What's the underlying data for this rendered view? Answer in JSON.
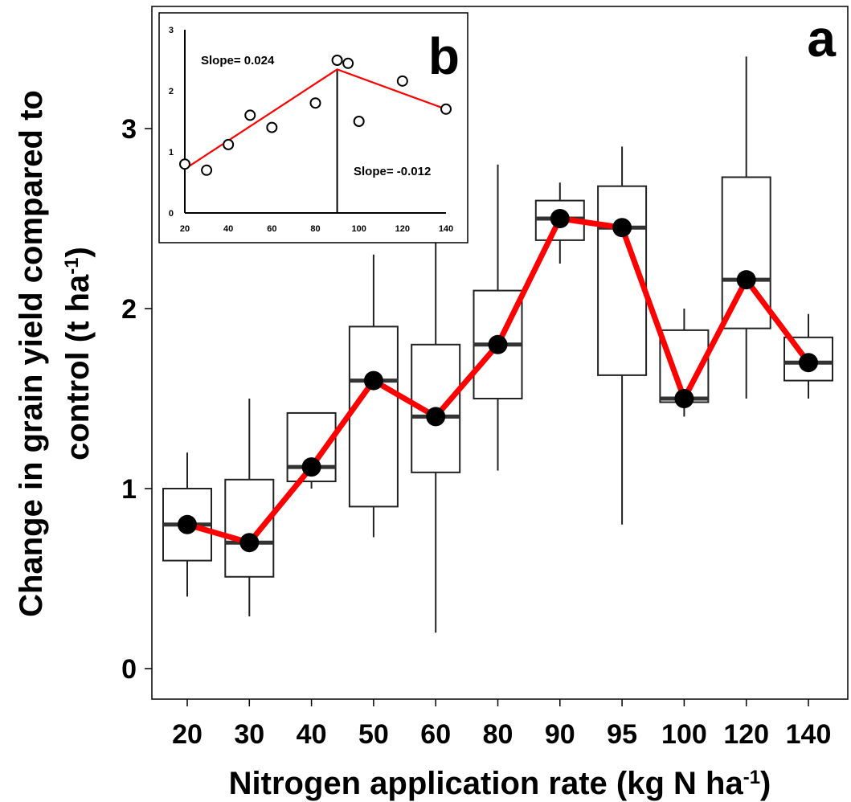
{
  "chart_data": [
    {
      "type": "box",
      "panel_label": "a",
      "xlabel": "Nitrogen application rate (kg N ha",
      "xlabel_sup": "-1",
      "xlabel_end": ")",
      "ylabel_line1": "Change in grain yield compared to",
      "ylabel_line2": "control (t ha",
      "ylabel_sup": "-1",
      "ylabel_end": ")",
      "categories": [
        "20",
        "30",
        "40",
        "50",
        "60",
        "80",
        "90",
        "95",
        "100",
        "120",
        "140"
      ],
      "boxes": [
        {
          "min": 0.4,
          "q1": 0.6,
          "median": 0.8,
          "q3": 1.0,
          "max": 1.2
        },
        {
          "min": 0.29,
          "q1": 0.51,
          "median": 0.7,
          "q3": 1.05,
          "max": 1.5
        },
        {
          "min": 1.0,
          "q1": 1.04,
          "median": 1.12,
          "q3": 1.42,
          "max": 1.42
        },
        {
          "min": 0.73,
          "q1": 0.9,
          "median": 1.6,
          "q3": 1.9,
          "max": 2.3
        },
        {
          "min": 0.2,
          "q1": 1.09,
          "median": 1.4,
          "q3": 1.8,
          "max": 2.4
        },
        {
          "min": 1.1,
          "q1": 1.5,
          "median": 1.8,
          "q3": 2.1,
          "max": 2.8
        },
        {
          "min": 2.25,
          "q1": 2.38,
          "median": 2.5,
          "q3": 2.6,
          "max": 2.7
        },
        {
          "min": 0.8,
          "q1": 1.63,
          "median": 2.45,
          "q3": 2.68,
          "max": 2.9
        },
        {
          "min": 1.4,
          "q1": 1.48,
          "median": 1.5,
          "q3": 1.88,
          "max": 2.0
        },
        {
          "min": 1.5,
          "q1": 1.89,
          "median": 2.16,
          "q3": 2.73,
          "max": 3.4
        },
        {
          "min": 1.5,
          "q1": 1.6,
          "median": 1.7,
          "q3": 1.84,
          "max": 1.97
        }
      ],
      "mean_line": {
        "color": "#ff0000",
        "values": [
          0.8,
          0.7,
          1.12,
          1.6,
          1.4,
          1.8,
          2.5,
          2.45,
          1.5,
          2.16,
          1.7
        ]
      },
      "yticks": [
        "0",
        "1",
        "2",
        "3"
      ],
      "ylim": [
        -0.15,
        3.7
      ]
    },
    {
      "type": "scatter",
      "panel_label": "b",
      "x": [
        20,
        30,
        40,
        50,
        60,
        80,
        90,
        95,
        100,
        120,
        140
      ],
      "y": [
        0.8,
        0.7,
        1.12,
        1.6,
        1.4,
        1.8,
        2.5,
        2.45,
        1.5,
        2.16,
        1.7
      ],
      "xticks": [
        "20",
        "40",
        "60",
        "80",
        "100",
        "120",
        "140"
      ],
      "yticks": [
        "0",
        "1",
        "2",
        "3"
      ],
      "xlim": [
        20,
        140
      ],
      "ylim": [
        0,
        3
      ],
      "breakpoint_x": 90,
      "segmented_fit": {
        "color": "#ff0000",
        "points": [
          [
            20,
            0.72
          ],
          [
            90,
            2.35
          ],
          [
            140,
            1.7
          ]
        ]
      },
      "annotation_left": "Slope= 0.024",
      "annotation_right": "Slope= -0.012"
    }
  ]
}
